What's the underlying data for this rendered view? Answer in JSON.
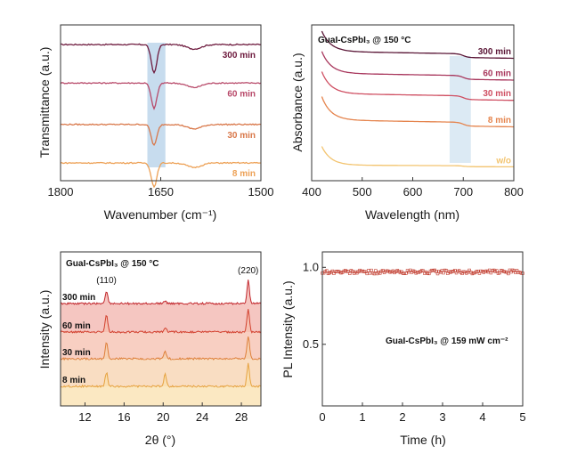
{
  "chart_data": [
    {
      "type": "line",
      "panel": "a",
      "xlabel": "Wavenumber (cm⁻¹)",
      "ylabel": "Transmittance (a.u.)",
      "xlim": [
        1800,
        1500
      ],
      "x_ticks": [
        "1800",
        "1650",
        "1500"
      ],
      "x_tick_values": [
        1800,
        1650,
        1500
      ],
      "highlight_band": [
        1670,
        1643
      ],
      "dip_center": 1660,
      "series": [
        {
          "name": "300 min",
          "color": "#6e1b3e",
          "offset": 0.92,
          "dip_depth": 0.19
        },
        {
          "name": "60 min",
          "color": "#b84a6a",
          "offset": 0.66,
          "dip_depth": 0.17
        },
        {
          "name": "30 min",
          "color": "#d9784a",
          "offset": 0.38,
          "dip_depth": 0.14
        },
        {
          "name": "8 min",
          "color": "#eda156",
          "offset": 0.12,
          "dip_depth": 0.16
        }
      ]
    },
    {
      "type": "line",
      "panel": "b",
      "title": "GuaI-CsPbI₃ @ 150 °C",
      "xlabel": "Wavelength (nm)",
      "ylabel": "Absorbance (a.u.)",
      "xlim": [
        400,
        800
      ],
      "x_ticks": [
        "400",
        "500",
        "600",
        "700",
        "800"
      ],
      "x_tick_values": [
        400,
        500,
        600,
        700,
        800
      ],
      "highlight_band": [
        673,
        715
      ],
      "absorption_edge": 700,
      "series": [
        {
          "name": "300 min",
          "color": "#5a1636",
          "start": 0.96,
          "plateau": 0.83,
          "tail": 0.79
        },
        {
          "name": "60 min",
          "color": "#a8365c",
          "start": 0.83,
          "plateau": 0.69,
          "tail": 0.65
        },
        {
          "name": "30 min",
          "color": "#cf4f62",
          "start": 0.7,
          "plateau": 0.56,
          "tail": 0.52
        },
        {
          "name": "8 min",
          "color": "#e5844d",
          "start": 0.54,
          "plateau": 0.39,
          "tail": 0.35
        },
        {
          "name": "w/o",
          "color": "#f3c46f",
          "start": 0.22,
          "plateau": 0.1,
          "tail": 0.09
        }
      ]
    },
    {
      "type": "area",
      "panel": "c",
      "title": "GuaI-CsPbI₃ @ 150 °C",
      "xlabel": "2θ (°)",
      "ylabel": "Intensity (a.u.)",
      "xlim": [
        9.5,
        30
      ],
      "x_ticks": [
        "12",
        "16",
        "20",
        "24",
        "28"
      ],
      "x_tick_values": [
        12,
        16,
        20,
        24,
        28
      ],
      "peak_labels": [
        {
          "text": "(110)",
          "x": 14.2
        },
        {
          "text": "(220)",
          "x": 28.7
        }
      ],
      "peaks_2theta": [
        14.2,
        20.2,
        28.7
      ],
      "series": [
        {
          "name": "300 min",
          "color": "#c2272d",
          "fill": "#f2b3ac",
          "peak_heights": [
            0.55,
            0.1,
            1.0
          ]
        },
        {
          "name": "60 min",
          "color": "#d2402e",
          "fill": "#f5bfae",
          "peak_heights": [
            0.75,
            0.2,
            1.0
          ]
        },
        {
          "name": "30 min",
          "color": "#de7f3a",
          "fill": "#f7d2ad",
          "peak_heights": [
            0.7,
            0.3,
            1.0
          ]
        },
        {
          "name": "8 min",
          "color": "#e6a23f",
          "fill": "#f9e0ae",
          "peak_heights": [
            0.6,
            0.55,
            1.0
          ]
        }
      ]
    },
    {
      "type": "scatter",
      "panel": "d",
      "xlabel": "Time (h)",
      "ylabel": "PL Intensity (a.u.)",
      "annotation": "GuaI-CsPbI₃ @ 159 mW cm⁻²",
      "xlim": [
        0,
        5
      ],
      "ylim": [
        0.1,
        1.1
      ],
      "x_ticks": [
        "0",
        "1",
        "2",
        "3",
        "4",
        "5"
      ],
      "x_tick_values": [
        0,
        1,
        2,
        3,
        4,
        5
      ],
      "y_ticks": [
        "1.0",
        "0.5"
      ],
      "y_tick_values": [
        1.0,
        0.5
      ],
      "marker_color": "#c0392b",
      "values_summary": {
        "mean": 0.97,
        "spread": 0.02,
        "n_points": 140
      }
    }
  ]
}
